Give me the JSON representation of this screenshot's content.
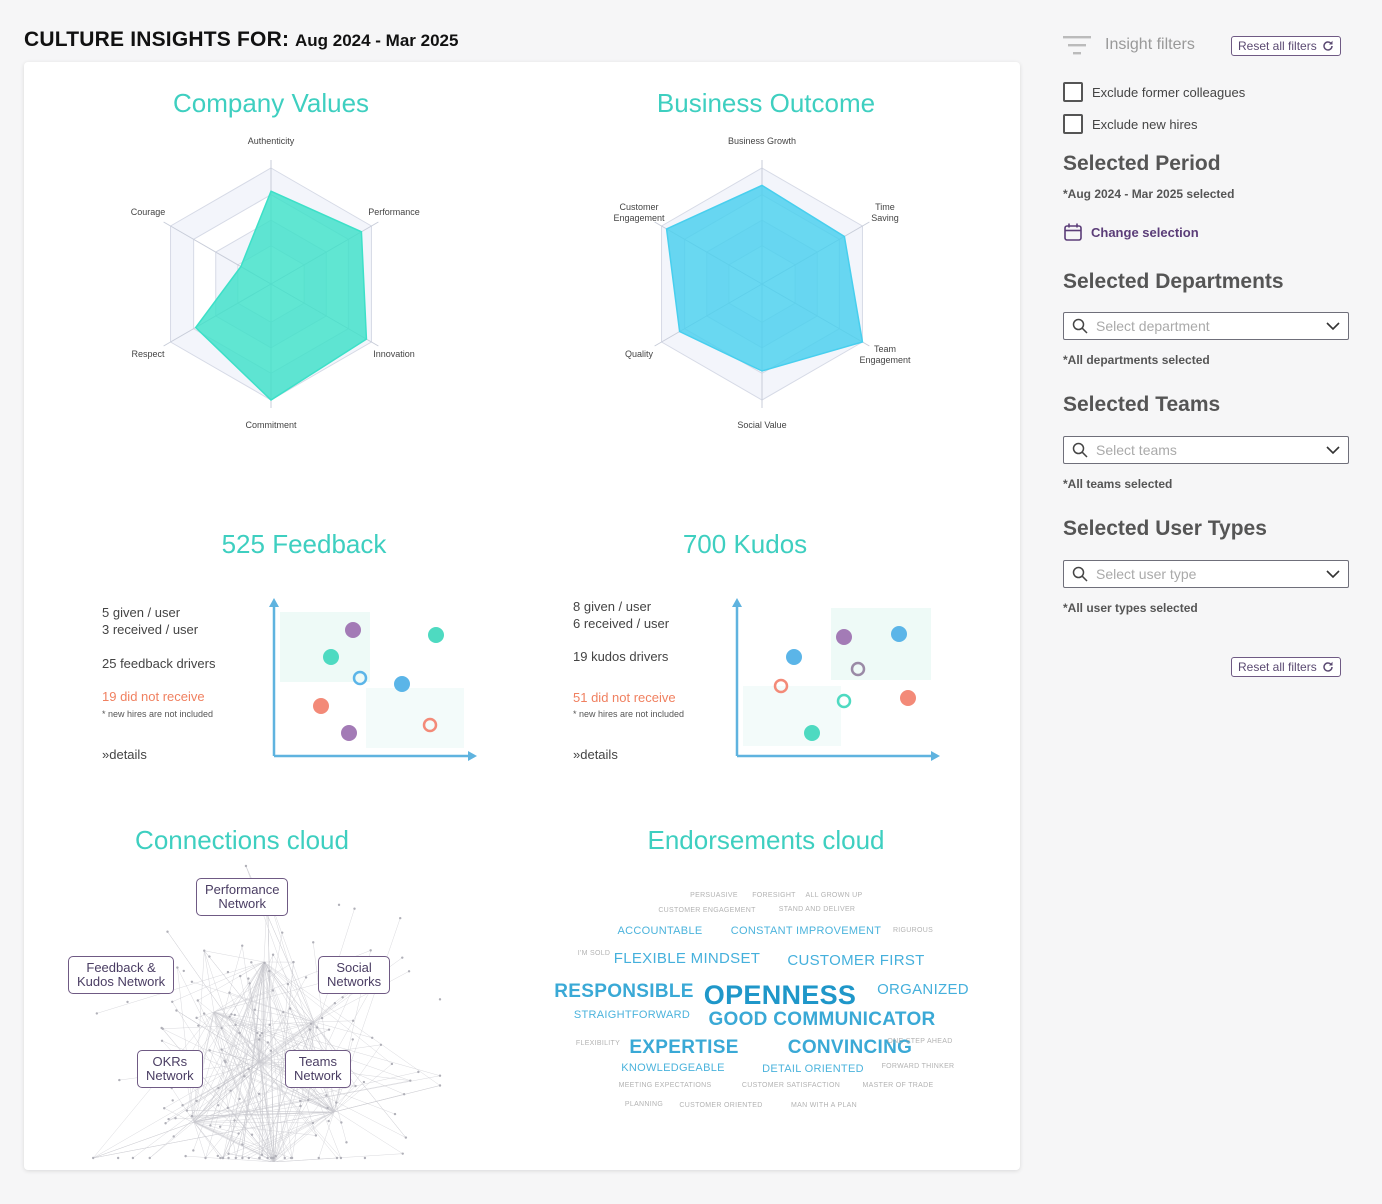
{
  "header": {
    "prefix": "CULTURE INSIGHTS FOR:",
    "period": "Aug 2024 - Mar 2025"
  },
  "company_values": {
    "title": "Company Values",
    "axes": [
      "Authenticity",
      "Performance",
      "Innovation",
      "Commitment",
      "Respect",
      "Courage"
    ],
    "values": [
      0.8,
      0.9,
      0.95,
      1.0,
      0.75,
      0.3
    ],
    "color": "#3de0c8"
  },
  "business_outcome": {
    "title": "Business Outcome",
    "axes": [
      "Business Growth",
      "Time Saving",
      "Team Engagement",
      "Social Value",
      "Quality",
      "Customer Engagement"
    ],
    "axis_lines": [
      [
        "Business Growth"
      ],
      [
        "Time",
        "Saving"
      ],
      [
        "Team",
        "Engagement"
      ],
      [
        "Social Value"
      ],
      [
        "Quality"
      ],
      [
        "Customer",
        "Engagement"
      ]
    ],
    "values": [
      0.85,
      0.82,
      1.0,
      0.75,
      0.82,
      0.95
    ],
    "color": "#48cfee"
  },
  "feedback": {
    "title": "525 Feedback",
    "given": "5 given / user",
    "received": "3 received / user",
    "drivers": "25 feedback drivers",
    "not_received": "19 did not receive",
    "note": "* new hires are not included",
    "details": "details"
  },
  "kudos": {
    "title": "700 Kudos",
    "given": "8 given / user",
    "received": "6 received / user",
    "drivers": "19 kudos drivers",
    "not_received": "51 did not receive",
    "note": "* new hires are not included",
    "details": "details"
  },
  "connections": {
    "title": "Connections cloud",
    "nodes": [
      {
        "lines": [
          "Performance",
          "Network"
        ]
      },
      {
        "lines": [
          "Feedback &",
          "Kudos Network"
        ]
      },
      {
        "lines": [
          "Social",
          "Networks"
        ]
      },
      {
        "lines": [
          "OKRs",
          "Network"
        ]
      },
      {
        "lines": [
          "Teams",
          "Network"
        ]
      }
    ]
  },
  "endorsements": {
    "title": "Endorsements cloud",
    "words": [
      {
        "text": "PERSUASIVE",
        "weight": 1
      },
      {
        "text": "FORESIGHT",
        "weight": 1
      },
      {
        "text": "ALL GROWN UP",
        "weight": 1
      },
      {
        "text": "CUSTOMER ENGAGEMENT",
        "weight": 1
      },
      {
        "text": "STAND AND DELIVER",
        "weight": 1
      },
      {
        "text": "ACCOUNTABLE",
        "weight": 2
      },
      {
        "text": "CONSTANT IMPROVEMENT",
        "weight": 2
      },
      {
        "text": "RIGUROUS",
        "weight": 1
      },
      {
        "text": "I'M SOLD",
        "weight": 1
      },
      {
        "text": "FLEXIBLE MINDSET",
        "weight": 3
      },
      {
        "text": "CUSTOMER FIRST",
        "weight": 3
      },
      {
        "text": "RESPONSIBLE",
        "weight": 4
      },
      {
        "text": "OPENNESS",
        "weight": 5
      },
      {
        "text": "ORGANIZED",
        "weight": 3
      },
      {
        "text": "STRAIGHTFORWARD",
        "weight": 2
      },
      {
        "text": "GOOD COMMUNICATOR",
        "weight": 4
      },
      {
        "text": "FLEXIBILITY",
        "weight": 1
      },
      {
        "text": "EXPERTISE",
        "weight": 4
      },
      {
        "text": "CONVINCING",
        "weight": 4
      },
      {
        "text": "ONE STEP AHEAD",
        "weight": 1
      },
      {
        "text": "KNOWLEDGEABLE",
        "weight": 2
      },
      {
        "text": "DETAIL ORIENTED",
        "weight": 2
      },
      {
        "text": "FORWARD THINKER",
        "weight": 1
      },
      {
        "text": "MEETING EXPECTATIONS",
        "weight": 1
      },
      {
        "text": "CUSTOMER SATISFACTION",
        "weight": 1
      },
      {
        "text": "MASTER OF TRADE",
        "weight": 1
      },
      {
        "text": "PLANNING",
        "weight": 1
      },
      {
        "text": "CUSTOMER ORIENTED",
        "weight": 1
      },
      {
        "text": "MAN WITH A PLAN",
        "weight": 1
      }
    ]
  },
  "sidebar": {
    "filters_label": "Insight filters",
    "reset_label": "Reset all filters",
    "exclude_former": "Exclude former colleagues",
    "exclude_new": "Exclude new hires",
    "period_title": "Selected Period",
    "period_note": "*Aug 2024 - Mar 2025 selected",
    "change_selection": "Change selection",
    "departments_title": "Selected Departments",
    "departments_placeholder": "Select department",
    "departments_note": "*All departments selected",
    "teams_title": "Selected Teams",
    "teams_placeholder": "Select teams",
    "teams_note": "*All teams selected",
    "usertypes_title": "Selected User Types",
    "usertypes_placeholder": "Select user type",
    "usertypes_note": "*All user types selected"
  },
  "colors": {
    "accent_teal": "#3ecfc0",
    "accent_purple": "#6f5a84",
    "warn": "#f08060",
    "cloud_blue": "#3aaed8"
  }
}
